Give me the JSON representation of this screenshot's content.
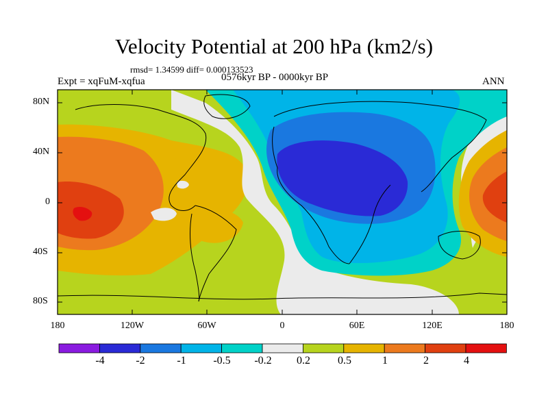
{
  "title": "Velocity Potential at 200 hPa (km2/s)",
  "stats": "rmsd= 1.34599 diff= 0.000133523",
  "period": "0576kyr BP - 0000kyr BP",
  "experiment": "Expt = xqFuM-xqfua",
  "season": "ANN",
  "lat_labels": [
    "80N",
    "40N",
    "0",
    "40S",
    "80S"
  ],
  "lon_labels": [
    "180",
    "120W",
    "60W",
    "0",
    "60E",
    "120E",
    "180"
  ],
  "colorbar": {
    "levels": [
      "-4",
      "-2",
      "-1",
      "-0.5",
      "-0.2",
      "0.2",
      "0.5",
      "1",
      "2",
      "4"
    ],
    "colors": [
      "#8a1be0",
      "#2a2ad6",
      "#1a78e0",
      "#00b4e8",
      "#00d2c8",
      "#ebebeb",
      "#b7d41e",
      "#e6b400",
      "#ec7a1e",
      "#e04010",
      "#e41010"
    ]
  },
  "field_colors": {
    "lt_m4": "#8a1be0",
    "m4_m2": "#2a2ad6",
    "m2_m1": "#1a78e0",
    "m1_m05": "#00b4e8",
    "m05_m02": "#00d2c8",
    "m02_02": "#ebebeb",
    "p02_05": "#b7d41e",
    "p05_1": "#e6b400",
    "p1_2": "#ec7a1e",
    "p2_4": "#e04010",
    "gt_4": "#e41010"
  }
}
